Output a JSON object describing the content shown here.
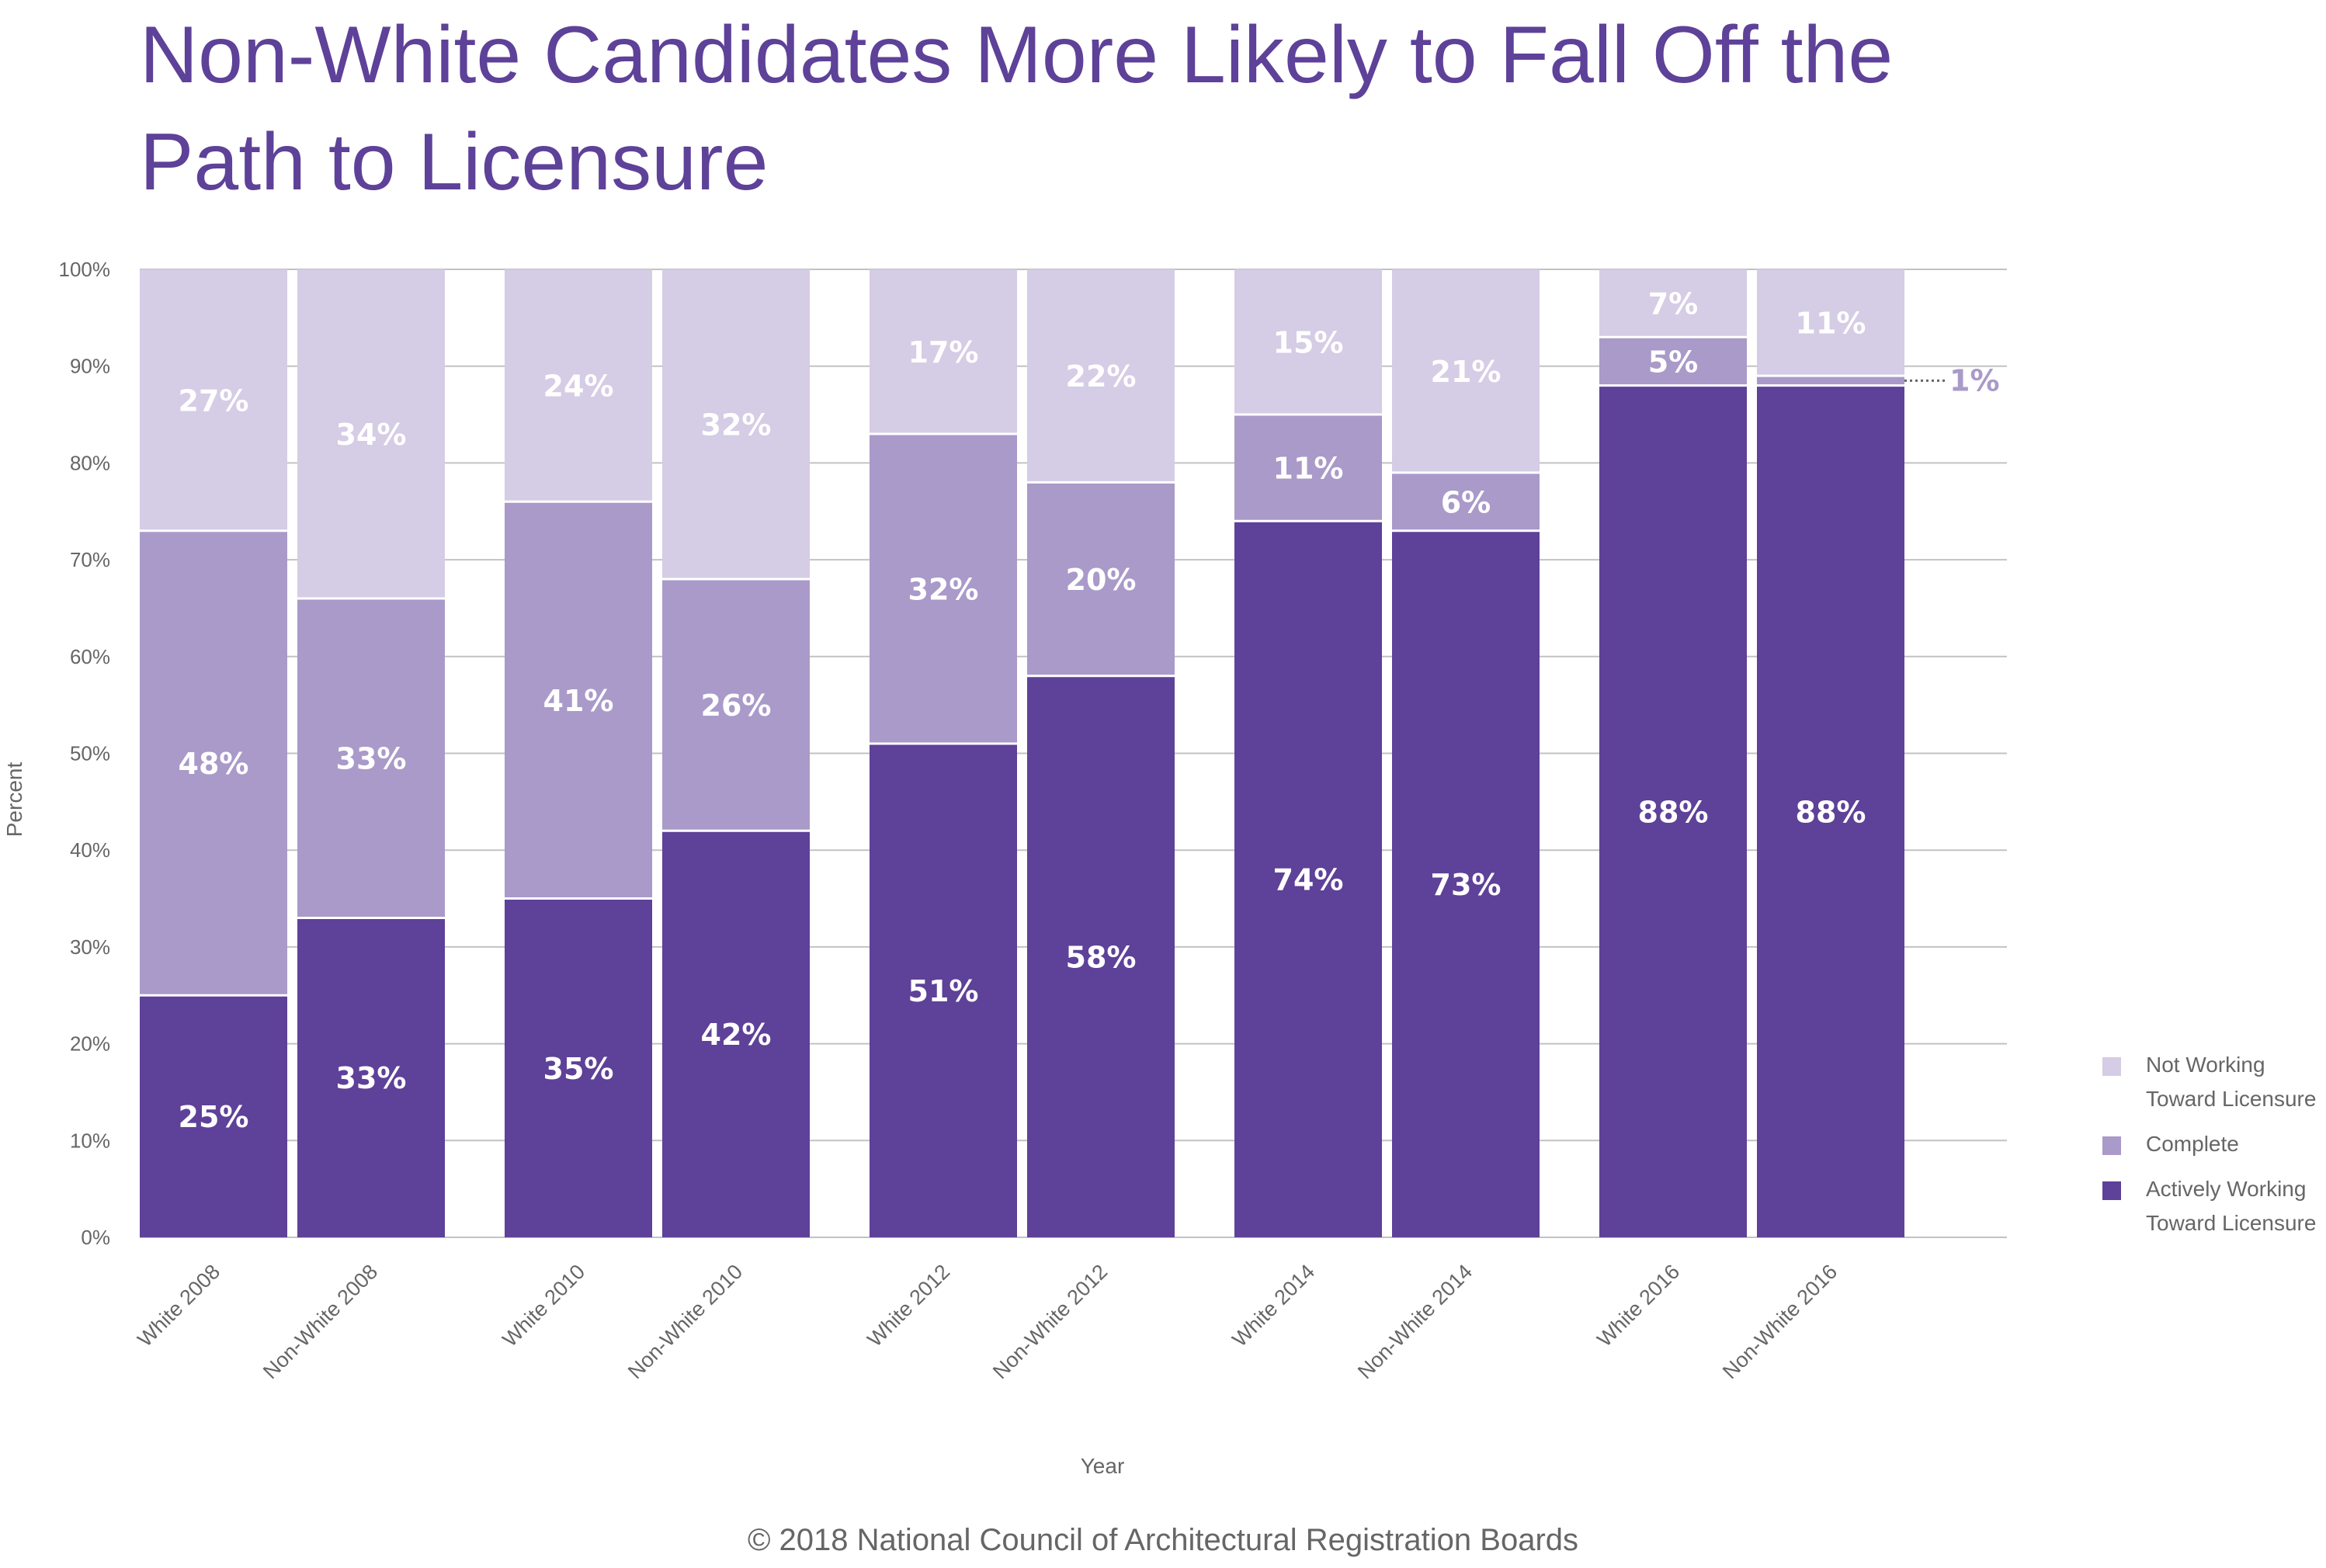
{
  "chart_data": {
    "type": "bar",
    "stacked": true,
    "title": "Non-White Candidates More Likely to Fall Off the Path to Licensure",
    "xlabel": "Year",
    "ylabel": "Percent",
    "ylim": [
      0,
      100
    ],
    "yticks": [
      "0%",
      "10%",
      "20%",
      "30%",
      "40%",
      "50%",
      "60%",
      "70%",
      "80%",
      "90%",
      "100%"
    ],
    "grid": true,
    "legend_position": "bottom-right",
    "categories": [
      "White 2008",
      "Non-White 2008",
      "White 2010",
      "Non-White 2010",
      "White 2012",
      "Non-White 2012",
      "White 2014",
      "Non-White 2014",
      "White 2016",
      "Non-White 2016"
    ],
    "series": [
      {
        "name": "Actively Working Toward Licensure",
        "color": "#5e4198",
        "values": [
          25,
          33,
          35,
          42,
          51,
          58,
          74,
          73,
          88,
          88
        ],
        "labels": [
          "25%",
          "33%",
          "35%",
          "42%",
          "51%",
          "58%",
          "74%",
          "73%",
          "88%",
          "88%"
        ]
      },
      {
        "name": "Complete",
        "color": "#a99ac9",
        "values": [
          48,
          33,
          41,
          26,
          32,
          20,
          11,
          6,
          5,
          1
        ],
        "labels": [
          "48%",
          "33%",
          "41%",
          "26%",
          "32%",
          "20%",
          "11%",
          "6%",
          "5%",
          "1%"
        ]
      },
      {
        "name": "Not Working Toward Licensure",
        "color": "#d5cce5",
        "values": [
          27,
          34,
          24,
          32,
          17,
          22,
          15,
          21,
          7,
          11
        ],
        "labels": [
          "27%",
          "34%",
          "24%",
          "32%",
          "17%",
          "22%",
          "15%",
          "21%",
          "7%",
          "11%"
        ]
      }
    ]
  },
  "legend": {
    "items": [
      {
        "label": "Not Working\nToward Licensure",
        "color": "#d5cce5"
      },
      {
        "label": "Complete",
        "color": "#a99ac9"
      },
      {
        "label": "Actively Working\nToward Licensure",
        "color": "#5e4198"
      }
    ]
  },
  "footer": "© 2018 National Council of Architectural Registration Boards"
}
